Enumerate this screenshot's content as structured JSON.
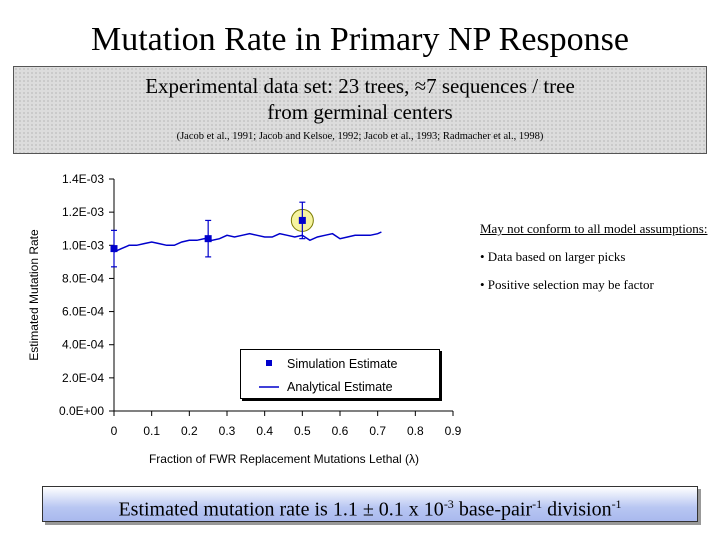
{
  "slide": {
    "title": "Mutation Rate in Primary NP Response",
    "info": {
      "line1": "Experimental data set: 23 trees, ≈7 sequences / tree",
      "line2": "from germinal centers",
      "citation": "(Jacob et al., 1991; Jacob and Kelsoe, 1992; Jacob et al., 1993; Radmacher et al., 1998)"
    },
    "notes": {
      "heading": "May not conform to all model assumptions:",
      "bullets": [
        "• Data based on larger picks",
        "• Positive selection may be factor"
      ]
    },
    "conclusion": {
      "text": "Estimated mutation rate is 1.1 ± 0.1 x 10",
      "exp1": "-3",
      "mid": " base-pair",
      "exp2": "-1",
      "tail": " division",
      "exp3": "-1"
    }
  },
  "colors": {
    "series": "#0000cc",
    "highlight_fill": "#f6f4a0",
    "highlight_stroke": "#7a7a00"
  },
  "chart_data": {
    "type": "line",
    "xlabel": "Fraction of FWR Replacement Mutations Lethal (λ)",
    "ylabel": "Estimated Mutation Rate",
    "xlim": [
      0,
      0.9
    ],
    "ylim": [
      0,
      0.0014
    ],
    "xticks": [
      0,
      0.1,
      0.2,
      0.3,
      0.4,
      0.5,
      0.6,
      0.7,
      0.8,
      0.9
    ],
    "xtick_labels": [
      "0",
      "0.1",
      "0.2",
      "0.3",
      "0.4",
      "0.5",
      "0.6",
      "0.7",
      "0.8",
      "0.9"
    ],
    "yticks": [
      0,
      0.0002,
      0.0004,
      0.0006,
      0.0008,
      0.001,
      0.0012,
      0.0014
    ],
    "ytick_labels": [
      "0.0E+00",
      "2.0E-04",
      "4.0E-04",
      "6.0E-04",
      "8.0E-04",
      "1.0E-03",
      "1.2E-03",
      "1.4E-03"
    ],
    "legend_position": "bottom-right",
    "series": [
      {
        "name": "Simulation Estimate",
        "style": "square-markers-with-error-bars",
        "points": [
          {
            "x": 0.0,
            "y": 0.00098,
            "err": 0.00011
          },
          {
            "x": 0.25,
            "y": 0.00104,
            "err": 0.00011
          },
          {
            "x": 0.5,
            "y": 0.00115,
            "err": 0.00011
          }
        ]
      },
      {
        "name": "Analytical Estimate",
        "style": "line",
        "x": [
          0,
          0.02,
          0.04,
          0.06,
          0.08,
          0.1,
          0.12,
          0.14,
          0.16,
          0.18,
          0.2,
          0.22,
          0.24,
          0.26,
          0.28,
          0.3,
          0.32,
          0.34,
          0.36,
          0.38,
          0.4,
          0.42,
          0.44,
          0.46,
          0.48,
          0.5,
          0.52,
          0.54,
          0.56,
          0.58,
          0.6,
          0.62,
          0.64,
          0.66,
          0.68,
          0.7,
          0.71
        ],
        "y": [
          0.00096,
          0.00098,
          0.001,
          0.001,
          0.00101,
          0.00102,
          0.00101,
          0.001,
          0.001,
          0.00102,
          0.00103,
          0.00103,
          0.00104,
          0.00103,
          0.00104,
          0.00106,
          0.00105,
          0.00106,
          0.00107,
          0.00106,
          0.00105,
          0.00105,
          0.00107,
          0.00106,
          0.00105,
          0.00106,
          0.00103,
          0.00105,
          0.00106,
          0.00107,
          0.00104,
          0.00105,
          0.00106,
          0.00106,
          0.00106,
          0.00107,
          0.00108
        ]
      }
    ],
    "highlight": {
      "x": 0.5,
      "y": 0.00115,
      "label": "circled estimate"
    }
  }
}
